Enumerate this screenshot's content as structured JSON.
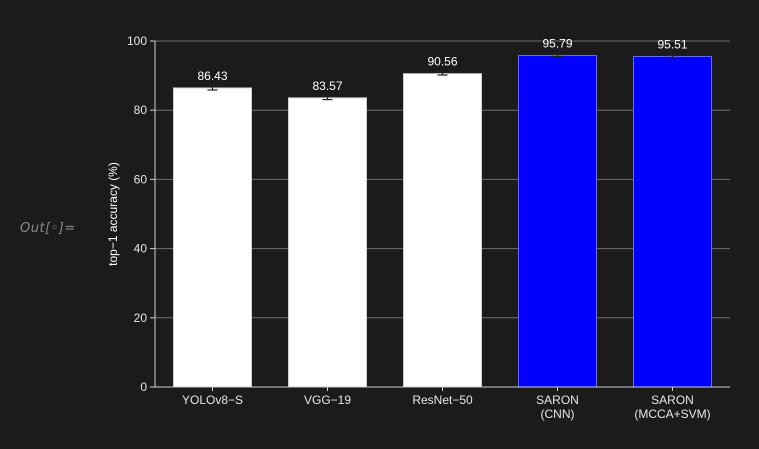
{
  "out_label": "Out[◦]=",
  "chart_data": {
    "type": "bar",
    "categories": [
      [
        "YOLOv8−S"
      ],
      [
        "VGG−19"
      ],
      [
        "ResNet−50"
      ],
      [
        "SARON",
        "(CNN)"
      ],
      [
        "SARON",
        "(MCCA+SVM)"
      ]
    ],
    "values": [
      86.43,
      83.57,
      90.56,
      95.79,
      95.51
    ],
    "value_labels": [
      "86.43",
      "83.57",
      "90.56",
      "95.79",
      "95.51"
    ],
    "error": [
      0.6,
      0.5,
      0.4,
      0.3,
      0.3
    ],
    "bar_colors": [
      "#ffffff",
      "#ffffff",
      "#ffffff",
      "#0000ff",
      "#0000ff"
    ],
    "ylabel": "top−1 accuracy (%)",
    "ylim": [
      0,
      100
    ],
    "yticks": [
      0,
      20,
      40,
      60,
      80,
      100
    ],
    "ytick_labels": [
      "0",
      "20",
      "40",
      "60",
      "80",
      "100"
    ],
    "grid": true,
    "colors": {
      "background": "#1b1b1b",
      "grid": "#6e6e6e",
      "axis": "#cfcfcf",
      "text": "#ffffff"
    }
  }
}
